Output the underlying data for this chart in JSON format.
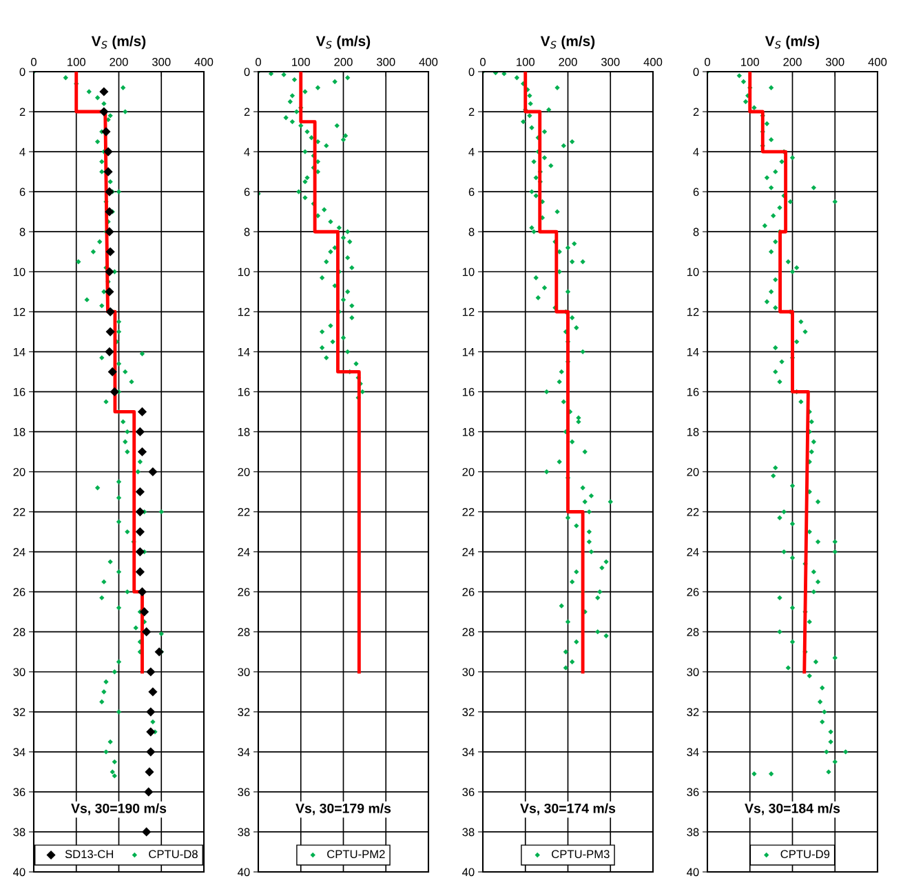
{
  "chart_data": [
    {
      "type": "scatter",
      "xlabel": "V$_{S}$ (m/s)",
      "xlim": [
        0,
        400
      ],
      "xticks": [
        0,
        100,
        200,
        300,
        400
      ],
      "ylim": [
        40,
        0
      ],
      "yticks": [
        0,
        2,
        4,
        6,
        8,
        10,
        12,
        14,
        16,
        18,
        20,
        22,
        24,
        26,
        28,
        30,
        32,
        34,
        36,
        38,
        40
      ],
      "grid": true,
      "legend": "bottom",
      "annotations": [
        "Vs, 30=190 m/s"
      ],
      "series": [
        {
          "type": "line",
          "color": "#ff0000",
          "marker": "none",
          "x": [
            100,
            100,
            168,
            174,
            191,
            191,
            236,
            236,
            255,
            255
          ],
          "values": [
            0,
            2,
            2,
            12,
            12,
            17,
            17,
            26,
            26,
            30
          ]
        },
        {
          "name": "SD13-CH",
          "color": "#000000",
          "marker": "diamond",
          "x": [
            165,
            165,
            170,
            175,
            175,
            178,
            178,
            178,
            180,
            178,
            178,
            180,
            180,
            178,
            185,
            190,
            255,
            250,
            255,
            280,
            250,
            250,
            250,
            250,
            250,
            255,
            260,
            265,
            295,
            275,
            280,
            275,
            275,
            275,
            272,
            270,
            265
          ],
          "values": [
            1,
            2,
            3,
            4,
            5,
            6,
            7,
            8,
            9,
            10,
            11,
            12,
            13,
            14,
            15,
            16,
            17,
            18,
            19,
            20,
            21,
            22,
            23,
            24,
            25,
            26,
            27,
            28,
            29,
            30,
            31,
            32,
            33,
            34,
            35,
            36,
            38
          ]
        },
        {
          "name": "CPTU-D8",
          "color": "#00b050",
          "marker": "diamond",
          "x": [
            0,
            75,
            100,
            130,
            150,
            165,
            180,
            175,
            160,
            150,
            165,
            160,
            160,
            180,
            185,
            170,
            185,
            175,
            170,
            155,
            140,
            105,
            170,
            190,
            175,
            165,
            125,
            160,
            185,
            200,
            200,
            195,
            190,
            160,
            200,
            215,
            230,
            200,
            170,
            200,
            210,
            220,
            215,
            220,
            250,
            245,
            200,
            150,
            200,
            260,
            200,
            220,
            235,
            260,
            180,
            200,
            165,
            220,
            160,
            200,
            250,
            260,
            240,
            250,
            250,
            200,
            190,
            170,
            165,
            160,
            200,
            280,
            285,
            180,
            170,
            190,
            185,
            190,
            210,
            215,
            200,
            255,
            300,
            300,
            300
          ],
          "values": [
            0,
            0.3,
            0.6,
            1.0,
            1.3,
            1.6,
            2.2,
            2.4,
            3.0,
            3.5,
            4.0,
            4.5,
            5.0,
            5.5,
            6.0,
            6.5,
            7.0,
            7.5,
            8.0,
            8.5,
            9.0,
            9.5,
            9.8,
            10.0,
            10.5,
            11.0,
            11.4,
            11.7,
            12.0,
            12.5,
            13.0,
            13.5,
            14.0,
            14.3,
            14.6,
            15.0,
            15.5,
            16.0,
            16.5,
            17.0,
            17.5,
            18.0,
            18.5,
            19.0,
            19.5,
            20.0,
            20.5,
            20.8,
            21.3,
            22.0,
            22.5,
            23.0,
            23.5,
            24.0,
            24.5,
            25.0,
            25.5,
            26.0,
            26.3,
            26.8,
            27.0,
            27.5,
            27.8,
            28.5,
            29.0,
            29.5,
            30.0,
            30.5,
            31.0,
            31.5,
            32.0,
            32.5,
            33.0,
            33.5,
            34.0,
            34.5,
            35.0,
            35.2,
            0.8,
            2.0,
            6.0,
            14.1,
            22.0,
            28.1,
            29.0
          ]
        }
      ]
    },
    {
      "type": "scatter",
      "xlabel": "V$_{S}$ (m/s)",
      "xlim": [
        0,
        400
      ],
      "xticks": [
        0,
        100,
        200,
        300,
        400
      ],
      "ylim": [
        40,
        0
      ],
      "yticks": [
        0,
        2,
        4,
        6,
        8,
        10,
        12,
        14,
        16,
        18,
        20,
        22,
        24,
        26,
        28,
        30,
        32,
        34,
        36,
        38,
        40
      ],
      "grid": true,
      "legend": "bottom",
      "annotations": [
        "Vs, 30=179 m/s"
      ],
      "series": [
        {
          "type": "line",
          "color": "#ff0000",
          "marker": "none",
          "x": [
            100,
            100,
            133,
            133,
            187,
            187,
            237,
            237
          ],
          "values": [
            0,
            2.5,
            2.5,
            8,
            8,
            15,
            15,
            30
          ]
        },
        {
          "name": "CPTU-PM2",
          "color": "#00b050",
          "marker": "diamond",
          "x": [
            0,
            30,
            60,
            85,
            210,
            180,
            140,
            110,
            80,
            75,
            100,
            90,
            65,
            80,
            100,
            115,
            125,
            140,
            200,
            205,
            185,
            160,
            110,
            130,
            140,
            130,
            140,
            115,
            110,
            95,
            0,
            110,
            130,
            155,
            140,
            170,
            190,
            210,
            200,
            215,
            180,
            170,
            210,
            160,
            220,
            190,
            150,
            180,
            210,
            200,
            220,
            190,
            220,
            170,
            150,
            200,
            175,
            150,
            210,
            160,
            230,
            215,
            235,
            240,
            245,
            235
          ],
          "values": [
            0,
            0.1,
            0.15,
            0.4,
            0.3,
            0.5,
            0.8,
            1.0,
            1.2,
            1.5,
            1.8,
            2.0,
            2.3,
            2.5,
            2.7,
            3.0,
            3.3,
            3.5,
            3.4,
            3.2,
            2.7,
            3.7,
            4.0,
            4.2,
            4.5,
            4.8,
            5.0,
            5.3,
            5.5,
            6.0,
            6.1,
            6.3,
            6.6,
            6.9,
            7.2,
            7.5,
            7.8,
            8.0,
            8.3,
            8.5,
            8.8,
            9.0,
            9.3,
            9.5,
            9.8,
            10.0,
            10.3,
            10.7,
            11.0,
            11.4,
            11.7,
            12.0,
            12.3,
            12.7,
            13.0,
            13.3,
            13.5,
            13.8,
            14.0,
            14.3,
            14.6,
            15.0,
            15.3,
            15.6,
            16.0,
            16.3
          ]
        }
      ]
    },
    {
      "type": "scatter",
      "xlabel": "V$_{S}$ (m/s)",
      "xlim": [
        0,
        400
      ],
      "xticks": [
        0,
        100,
        200,
        300,
        400
      ],
      "ylim": [
        40,
        0
      ],
      "yticks": [
        0,
        2,
        4,
        6,
        8,
        10,
        12,
        14,
        16,
        18,
        20,
        22,
        24,
        26,
        28,
        30,
        32,
        34,
        36,
        38,
        40
      ],
      "grid": true,
      "legend": "bottom",
      "annotations": [
        "Vs, 30=174 m/s"
      ],
      "series": [
        {
          "type": "line",
          "color": "#ff0000",
          "marker": "none",
          "x": [
            100,
            100,
            134,
            134,
            173,
            173,
            200,
            200,
            235,
            235
          ],
          "values": [
            0,
            2,
            2,
            8,
            8,
            12,
            12,
            22,
            22,
            30
          ]
        },
        {
          "name": "CPTU-PM3",
          "color": "#00b050",
          "marker": "diamond",
          "x": [
            0,
            30,
            50,
            80,
            95,
            105,
            110,
            112,
            100,
            155,
            110,
            95,
            115,
            130,
            190,
            210,
            175,
            145,
            130,
            145,
            120,
            160,
            135,
            125,
            135,
            115,
            125,
            140,
            175,
            140,
            115,
            120,
            170,
            200,
            180,
            210,
            180,
            125,
            145,
            200,
            130,
            170,
            195,
            210,
            220,
            195,
            200,
            235,
            200,
            185,
            180,
            150,
            190,
            205,
            225,
            195,
            210,
            240,
            180,
            150,
            200,
            235,
            255,
            240,
            250,
            200,
            220,
            250,
            250,
            255,
            290,
            220,
            210,
            235,
            270,
            185,
            240,
            200,
            270,
            290,
            220,
            195,
            210,
            195,
            300,
            280,
            275,
            225,
            235,
            215
          ],
          "values": [
            0,
            0.05,
            0.1,
            0.3,
            0.6,
            0.9,
            1.2,
            1.6,
            1.9,
            1.9,
            2.2,
            2.5,
            2.8,
            3.3,
            3.7,
            3.5,
            0.8,
            3.0,
            4.0,
            4.3,
            4.5,
            4.7,
            5.0,
            5.3,
            5.5,
            6.0,
            6.2,
            6.5,
            7.0,
            7.3,
            7.8,
            8.0,
            8.5,
            8.8,
            9.0,
            9.5,
            10.0,
            10.3,
            10.8,
            11.0,
            11.3,
            11.8,
            12.0,
            12.3,
            12.8,
            13.0,
            13.5,
            14.0,
            14.5,
            15.0,
            15.5,
            16.0,
            16.5,
            17.0,
            17.5,
            18.0,
            18.5,
            19.0,
            19.5,
            20.0,
            20.3,
            20.8,
            21.2,
            21.5,
            22.0,
            22.3,
            22.7,
            23.0,
            23.5,
            24.0,
            24.5,
            25.0,
            25.5,
            26.0,
            26.3,
            26.7,
            27.0,
            27.5,
            28.0,
            28.2,
            28.5,
            29.0,
            29.5,
            29.8,
            21.5,
            24.8,
            26.0,
            17.3,
            9.5,
            8.6
          ]
        }
      ]
    },
    {
      "type": "scatter",
      "xlabel": "V$_{S}$ (m/s)",
      "xlim": [
        0,
        400
      ],
      "xticks": [
        0,
        100,
        200,
        300,
        400
      ],
      "ylim": [
        40,
        0
      ],
      "yticks": [
        0,
        2,
        4,
        6,
        8,
        10,
        12,
        14,
        16,
        18,
        20,
        22,
        24,
        26,
        28,
        30,
        32,
        34,
        36,
        38,
        40
      ],
      "grid": true,
      "legend": "bottom",
      "annotations": [
        "Vs, 30=184 m/s"
      ],
      "series": [
        {
          "type": "line",
          "color": "#ff0000",
          "marker": "none",
          "x": [
            100,
            100,
            130,
            130,
            184,
            184,
            171,
            171,
            200,
            200,
            237,
            228
          ],
          "values": [
            0,
            2,
            2,
            4,
            4,
            8,
            8,
            12,
            12,
            16,
            16,
            30
          ]
        },
        {
          "name": "CPTU-D9",
          "color": "#00b050",
          "marker": "diamond",
          "x": [
            0,
            75,
            85,
            100,
            95,
            90,
            110,
            130,
            140,
            130,
            150,
            130,
            150,
            180,
            200,
            175,
            160,
            140,
            150,
            180,
            195,
            170,
            155,
            135,
            170,
            160,
            150,
            190,
            210,
            200,
            160,
            150,
            140,
            160,
            195,
            220,
            230,
            210,
            160,
            200,
            175,
            160,
            170,
            210,
            220,
            240,
            245,
            240,
            250,
            245,
            240,
            160,
            155,
            200,
            240,
            260,
            180,
            170,
            200,
            240,
            260,
            180,
            200,
            230,
            250,
            260,
            250,
            170,
            200,
            230,
            240,
            170,
            200,
            230,
            255,
            190,
            240,
            270,
            265,
            275,
            270,
            290,
            290,
            280,
            300,
            285,
            110,
            150,
            325,
            300,
            250,
            300,
            300,
            300
          ],
          "values": [
            0,
            0.2,
            0.5,
            0.8,
            1.2,
            1.5,
            1.8,
            2.2,
            2.6,
            3.0,
            3.4,
            3.7,
            0.8,
            4.0,
            4.3,
            4.5,
            5.0,
            5.3,
            5.8,
            6.2,
            6.5,
            6.8,
            7.2,
            7.7,
            8.0,
            8.5,
            9.0,
            9.5,
            9.8,
            10.0,
            10.4,
            11.0,
            11.5,
            11.8,
            12.0,
            12.5,
            13.0,
            13.5,
            13.8,
            14.3,
            14.5,
            15.0,
            15.5,
            16.0,
            16.5,
            17.0,
            17.5,
            18.0,
            18.5,
            19.0,
            19.5,
            19.8,
            20.2,
            20.7,
            21.0,
            21.5,
            22.0,
            22.3,
            22.6,
            23.0,
            23.5,
            24.0,
            24.3,
            24.6,
            25.0,
            25.5,
            26.0,
            26.3,
            26.8,
            27.0,
            27.5,
            28.0,
            28.5,
            29.0,
            29.5,
            29.8,
            30.2,
            30.8,
            31.5,
            32.0,
            32.5,
            33.0,
            33.5,
            34.0,
            34.5,
            35.0,
            35.1,
            35.1,
            34.0,
            6.5,
            5.8,
            23.5,
            24.0,
            29.3
          ]
        }
      ]
    }
  ]
}
